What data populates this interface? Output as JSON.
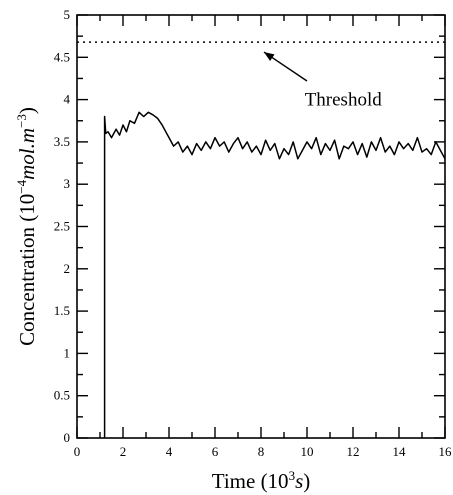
{
  "chart_data": {
    "type": "line",
    "title": "",
    "xlabel": {
      "prefix": "Time (10",
      "sup": "3",
      "italic": "s",
      "suffix": ")"
    },
    "ylabel": {
      "prefix": "Concentration (10",
      "sup": "−4",
      "italic": "mol.m",
      "sup2": "−3",
      "suffix": ")"
    },
    "xlim": [
      0,
      16
    ],
    "ylim": [
      0,
      5
    ],
    "xticks": [
      "0",
      "2",
      "4",
      "6",
      "8",
      "10",
      "12",
      "14",
      "16"
    ],
    "yticks": [
      "0",
      "0.5",
      "1",
      "1.5",
      "2",
      "2.5",
      "3",
      "3.5",
      "4",
      "4.5",
      "5"
    ],
    "grid": false,
    "series": [
      {
        "x": [
          1.2,
          1.2,
          1.25,
          1.35,
          1.5,
          1.7,
          1.85,
          2.0,
          2.15,
          2.3,
          2.5,
          2.7,
          2.9,
          3.1,
          3.3,
          3.5,
          3.7,
          3.9,
          4.0,
          4.2,
          4.4,
          4.6,
          4.8,
          5.0,
          5.2,
          5.4,
          5.6,
          5.8,
          6.0,
          6.2,
          6.4,
          6.6,
          6.8,
          7.0,
          7.2,
          7.4,
          7.6,
          7.8,
          8.0,
          8.2,
          8.4,
          8.6,
          8.8,
          9.0,
          9.2,
          9.4,
          9.6,
          9.8,
          10.0,
          10.2,
          10.4,
          10.6,
          10.8,
          11.0,
          11.2,
          11.4,
          11.6,
          11.8,
          12.0,
          12.2,
          12.4,
          12.6,
          12.8,
          13.0,
          13.2,
          13.4,
          13.6,
          13.8,
          14.0,
          14.2,
          14.4,
          14.6,
          14.8,
          15.0,
          15.2,
          15.4,
          15.6,
          15.8,
          16.0
        ],
        "y": [
          0,
          3.8,
          3.6,
          3.62,
          3.55,
          3.65,
          3.58,
          3.7,
          3.62,
          3.75,
          3.72,
          3.85,
          3.8,
          3.85,
          3.82,
          3.78,
          3.7,
          3.6,
          3.55,
          3.45,
          3.5,
          3.38,
          3.45,
          3.35,
          3.48,
          3.4,
          3.5,
          3.42,
          3.55,
          3.45,
          3.5,
          3.38,
          3.48,
          3.55,
          3.42,
          3.5,
          3.38,
          3.45,
          3.35,
          3.52,
          3.4,
          3.48,
          3.3,
          3.42,
          3.35,
          3.5,
          3.3,
          3.4,
          3.5,
          3.42,
          3.55,
          3.35,
          3.48,
          3.4,
          3.52,
          3.3,
          3.45,
          3.42,
          3.5,
          3.35,
          3.48,
          3.32,
          3.5,
          3.4,
          3.55,
          3.38,
          3.45,
          3.35,
          3.5,
          3.42,
          3.48,
          3.4,
          3.55,
          3.38,
          3.42,
          3.35,
          3.5,
          3.4,
          3.3
        ]
      }
    ],
    "threshold": {
      "y": 4.68,
      "label": "Threshold",
      "arrow_target_x": 8.0,
      "style": "dotted"
    }
  }
}
